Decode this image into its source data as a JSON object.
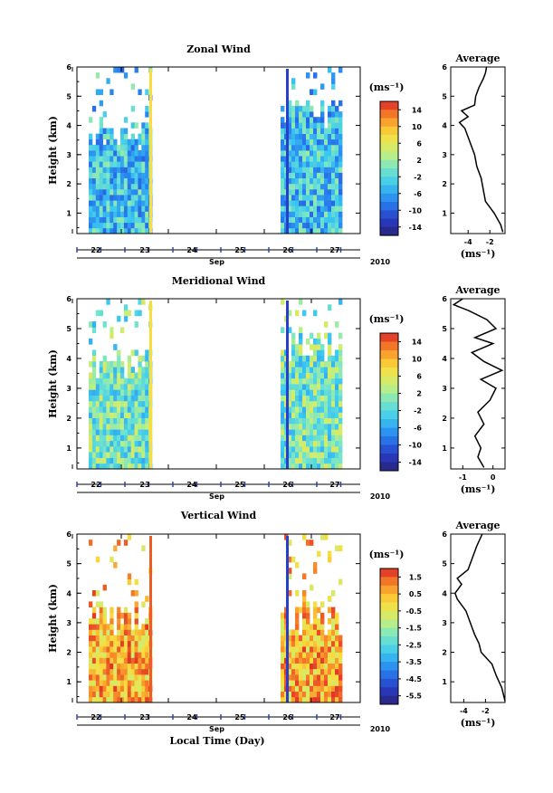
{
  "chart_data": [
    {
      "type": "heatmap",
      "title": "Zonal Wind",
      "ylabel": "Height (km)",
      "xlabel": "Sep",
      "year_label": "2010",
      "x_ticks": [
        "22",
        "23",
        "24",
        "25",
        "26",
        "27"
      ],
      "y_ticks": [
        "1",
        "2",
        "3",
        "4",
        "5",
        "6"
      ],
      "ylim": [
        0.3,
        6
      ],
      "colorbar": {
        "unit": "(ms⁻¹)",
        "ticks": [
          "14",
          "10",
          "6",
          "2",
          "-2",
          "-6",
          "-10",
          "-14"
        ],
        "range": [
          -16,
          16
        ]
      },
      "data_blocks": [
        {
          "x_start": "22",
          "x_end": "23",
          "value_typical": -4
        },
        {
          "x_start": "26",
          "x_end": "27",
          "value_typical": -4
        }
      ],
      "average_panel": {
        "title": "Average",
        "x_ticks": [
          "-4",
          "-2"
        ],
        "xlim": [
          -5.6,
          -0.6
        ],
        "xlabel": "(ms⁻¹)",
        "profile": [
          [
            0.35,
            -0.8
          ],
          [
            0.6,
            -1.0
          ],
          [
            1.0,
            -1.6
          ],
          [
            1.4,
            -2.4
          ],
          [
            1.8,
            -2.6
          ],
          [
            2.2,
            -2.8
          ],
          [
            2.6,
            -3.2
          ],
          [
            3.0,
            -3.4
          ],
          [
            3.3,
            -3.7
          ],
          [
            3.6,
            -4.0
          ],
          [
            3.9,
            -4.3
          ],
          [
            4.1,
            -4.8
          ],
          [
            4.3,
            -4.0
          ],
          [
            4.5,
            -4.6
          ],
          [
            4.7,
            -3.4
          ],
          [
            5.0,
            -3.3
          ],
          [
            5.3,
            -3.0
          ],
          [
            5.6,
            -2.6
          ],
          [
            5.8,
            -2.4
          ],
          [
            6.0,
            -2.3
          ]
        ]
      }
    },
    {
      "type": "heatmap",
      "title": "Meridional Wind",
      "ylabel": "Height (km)",
      "xlabel": "Sep",
      "year_label": "2010",
      "x_ticks": [
        "22",
        "23",
        "24",
        "25",
        "26",
        "27"
      ],
      "y_ticks": [
        "1",
        "2",
        "3",
        "4",
        "5",
        "6"
      ],
      "ylim": [
        0.3,
        6
      ],
      "colorbar": {
        "unit": "(ms⁻¹)",
        "ticks": [
          "14",
          "10",
          "6",
          "2",
          "-2",
          "-6",
          "-10",
          "-14"
        ],
        "range": [
          -16,
          16
        ]
      },
      "data_blocks": [
        {
          "x_start": "22",
          "x_end": "23",
          "value_typical": 0
        },
        {
          "x_start": "26",
          "x_end": "27",
          "value_typical": 0
        }
      ],
      "average_panel": {
        "title": "Average",
        "x_ticks": [
          "-1",
          "0"
        ],
        "xlim": [
          -1.4,
          0.4
        ],
        "xlabel": "(ms⁻¹)",
        "profile": [
          [
            0.35,
            -0.3
          ],
          [
            0.7,
            -0.5
          ],
          [
            1.0,
            -0.4
          ],
          [
            1.4,
            -0.6
          ],
          [
            1.8,
            -0.3
          ],
          [
            2.2,
            -0.5
          ],
          [
            2.6,
            -0.1
          ],
          [
            3.0,
            0.1
          ],
          [
            3.3,
            -0.4
          ],
          [
            3.6,
            0.3
          ],
          [
            3.9,
            -0.3
          ],
          [
            4.2,
            -0.7
          ],
          [
            4.5,
            0.0
          ],
          [
            4.7,
            -0.6
          ],
          [
            5.0,
            0.1
          ],
          [
            5.3,
            -0.2
          ],
          [
            5.6,
            -0.8
          ],
          [
            5.8,
            -1.3
          ],
          [
            6.0,
            -1.0
          ]
        ]
      }
    },
    {
      "type": "heatmap",
      "title": "Vertical Wind",
      "ylabel": "Height (km)",
      "xlabel": "Sep",
      "year_label": "2010",
      "x_ticks": [
        "22",
        "23",
        "24",
        "25",
        "26",
        "27"
      ],
      "y_ticks": [
        "1",
        "2",
        "3",
        "4",
        "5",
        "6"
      ],
      "ylim": [
        0.3,
        6
      ],
      "colorbar": {
        "unit": "(ms⁻¹)",
        "ticks": [
          "1.5",
          "0.5",
          "-0.5",
          "-1.5",
          "-2.5",
          "-3.5",
          "-4.5",
          "-5.5"
        ],
        "range": [
          -6,
          2
        ]
      },
      "data_blocks": [
        {
          "x_start": "22",
          "x_end": "23",
          "value_typical": 0.5
        },
        {
          "x_start": "26",
          "x_end": "27",
          "value_typical": 0.5
        }
      ],
      "average_panel": {
        "title": "Average",
        "x_ticks": [
          "-4",
          "-2"
        ],
        "xlim": [
          -5.2,
          -0.2
        ],
        "xlabel": "(ms⁻¹)",
        "profile": [
          [
            0.35,
            -0.2
          ],
          [
            0.8,
            -0.5
          ],
          [
            1.2,
            -1.0
          ],
          [
            1.6,
            -1.4
          ],
          [
            2.0,
            -2.4
          ],
          [
            2.3,
            -2.6
          ],
          [
            2.6,
            -3.0
          ],
          [
            3.0,
            -3.4
          ],
          [
            3.4,
            -3.8
          ],
          [
            3.8,
            -4.6
          ],
          [
            4.0,
            -4.8
          ],
          [
            4.3,
            -4.2
          ],
          [
            4.5,
            -4.6
          ],
          [
            4.8,
            -3.6
          ],
          [
            5.2,
            -3.2
          ],
          [
            5.6,
            -2.8
          ],
          [
            6.0,
            -2.3
          ]
        ]
      }
    }
  ],
  "footer_xlabel": "Local Time (Day)"
}
